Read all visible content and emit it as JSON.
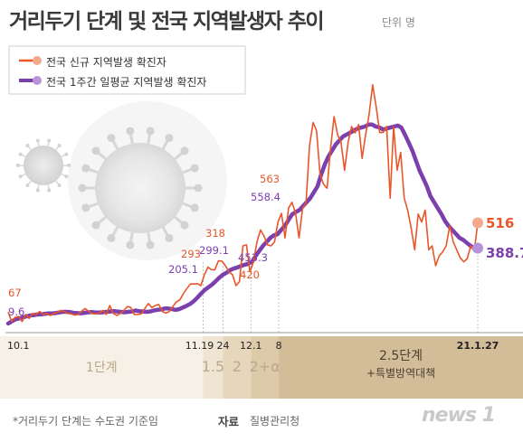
{
  "title": "거리두기 단계 및 전국 지역발생자 추이",
  "unit": "단위 명",
  "legend": {
    "new": "전국 신규 지역발생 확진자",
    "avg": "전국 1주간 일평균 지역발생 확진자"
  },
  "colors": {
    "new": "#e8562a",
    "avg": "#7b3fae",
    "stage_bg": "#efe6d6",
    "stage_bg_dark": "#d7c4a7"
  },
  "chart_data": {
    "type": "line",
    "x_range": [
      "2020-10-01",
      "2021-01-27"
    ],
    "x_ticks": [
      "10.1",
      "11.19",
      "24",
      "12.1",
      "8",
      "21.1.27"
    ],
    "series": [
      {
        "name": "전국 신규 지역발생 확진자",
        "values": [
          67,
          20,
          40,
          45,
          20,
          55,
          35,
          60,
          55,
          70,
          55,
          60,
          50,
          60,
          65,
          75,
          70,
          60,
          58,
          52,
          55,
          72,
          85,
          70,
          60,
          58,
          62,
          75,
          55,
          100,
          60,
          50,
          60,
          75,
          95,
          90,
          55,
          55,
          58,
          85,
          110,
          90,
          100,
          105,
          70,
          62,
          70,
          95,
          118,
          128,
          160,
          185,
          208,
          208,
          210,
          200,
          255,
          293,
          280,
          280,
          325,
          323,
          300,
          270,
          255,
          200,
          220,
          400,
          405,
          270,
          318,
          420,
          480,
          450,
          405,
          400,
          420,
          520,
          563,
          440,
          590,
          619,
          565,
          440,
          586,
          615,
          905,
          1020,
          980,
          760,
          710,
          690,
          890,
          1050,
          960,
          920,
          780,
          920,
          1000,
          968,
          1010,
          840,
          960,
          1060,
          1210,
          1100,
          970,
          970,
          1001,
          640,
          1000,
          780,
          870,
          640,
          580,
          490,
          380,
          560,
          520,
          580,
          380,
          400,
          300,
          350,
          370,
          400,
          500,
          420,
          380,
          340,
          320,
          336,
          400,
          372,
          516
        ],
        "labels": [
          {
            "text": "67",
            "value": 67
          },
          {
            "text": "318",
            "value": 318
          },
          {
            "text": "293",
            "value": 293
          },
          {
            "text": "420",
            "value": 420
          },
          {
            "text": "563",
            "value": 563
          },
          {
            "text": "516",
            "value": 516
          }
        ]
      },
      {
        "name": "전국 1주간 일평균 지역발생 확진자",
        "values": [
          9.6,
          20,
          30,
          35,
          40,
          45,
          50,
          52,
          55,
          55,
          58,
          60,
          60,
          62,
          65,
          68,
          68,
          67,
          63,
          62,
          61,
          63,
          66,
          67,
          65,
          65,
          66,
          68,
          70,
          72,
          70,
          68,
          66,
          68,
          70,
          75,
          72,
          70,
          68,
          70,
          75,
          78,
          80,
          85,
          85,
          82,
          78,
          82,
          90,
          98,
          108,
          122,
          140,
          160,
          178,
          192,
          205.1,
          222,
          240,
          255,
          265,
          278,
          286,
          292,
          299.1,
          305,
          310,
          320,
          350,
          375,
          400,
          420,
          440,
          453.3,
          458,
          480,
          500,
          530,
          558.4,
          570,
          580,
          600,
          620,
          640,
          670,
          700,
          760,
          810,
          850,
          880,
          910,
          930,
          950,
          960,
          970,
          980,
          990,
          995,
          1000,
          1010,
          1010,
          1000,
          995,
          985,
          990,
          995,
          1000,
          1005,
          995,
          960,
          920,
          880,
          830,
          780,
          740,
          700,
          650,
          620,
          590,
          560,
          525,
          500,
          480,
          460,
          440,
          430,
          415,
          400,
          390,
          388.7
        ],
        "labels": [
          {
            "text": "9.6",
            "value": 9.6
          },
          {
            "text": "299.1",
            "value": 299.1
          },
          {
            "text": "205.1",
            "value": 205.1
          },
          {
            "text": "453.3",
            "value": 453.3
          },
          {
            "text": "558.4",
            "value": 558.4
          },
          {
            "text": "388.7",
            "value": 388.7
          }
        ]
      }
    ],
    "ylim": [
      0,
      1250
    ],
    "stages": [
      {
        "label": "1단계",
        "from": "10.1",
        "to": "11.19"
      },
      {
        "label": "1.5",
        "from": "11.19",
        "to": "11.24"
      },
      {
        "label": "2",
        "from": "11.24",
        "to": "12.1"
      },
      {
        "label": "2+α",
        "from": "12.1",
        "to": "12.8"
      },
      {
        "label": "2.5단계",
        "label2": "+특별방역대책",
        "from": "12.8",
        "to": "21.1.27"
      }
    ]
  },
  "footer": {
    "note": "*거리두기 단계는 수도권 기준임",
    "source_label": "자료",
    "source": "질병관리청",
    "logo": "news 1"
  }
}
